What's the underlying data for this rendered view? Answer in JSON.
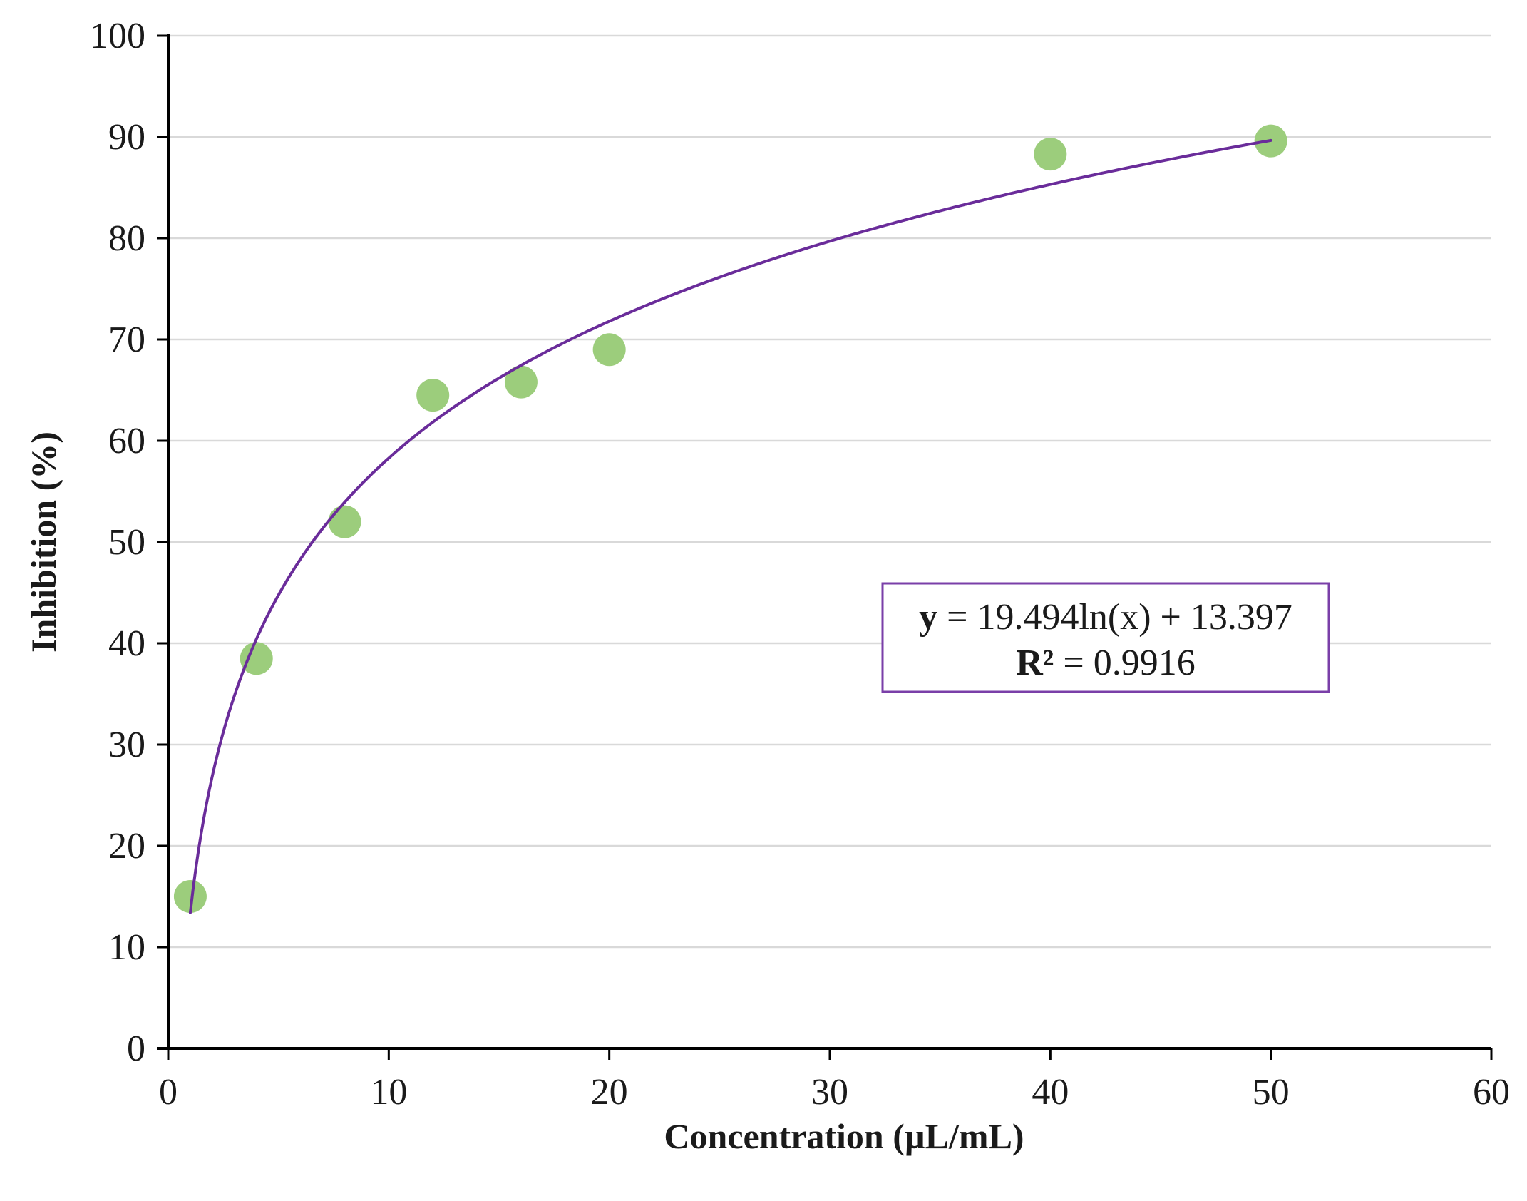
{
  "chart_data": {
    "type": "scatter",
    "title": "",
    "xlabel": "Concentration (µL/mL)",
    "ylabel": "Inhibition (%)",
    "xlim": [
      0,
      60
    ],
    "ylim": [
      0,
      100
    ],
    "x_ticks": [
      "0",
      "10",
      "20",
      "30",
      "40",
      "50",
      "60"
    ],
    "y_ticks": [
      "0",
      "10",
      "20",
      "30",
      "40",
      "50",
      "60",
      "70",
      "80",
      "90",
      "100"
    ],
    "grid": "horizontal",
    "series": [
      {
        "x": [
          1,
          4,
          8,
          12,
          16,
          20,
          40,
          50
        ],
        "y": [
          15,
          38.5,
          52,
          64.5,
          65.8,
          69,
          88.3,
          89.6
        ],
        "color": "#9ccd7c",
        "marker": "circle"
      }
    ],
    "trendline": {
      "type": "logarithmic",
      "a": 19.494,
      "b": 13.397,
      "x_range": [
        1,
        50
      ],
      "color": "#6a2c9a"
    },
    "annotation": {
      "equation_lead": "y",
      "equation_rest": " = 19.494ln(x)  + 13.397",
      "r2_lead": "R²",
      "r2_rest": " = 0.9916",
      "border_color": "#7a3fa8"
    },
    "colors": {
      "axis": "#000000",
      "grid": "#d9d9d9"
    }
  }
}
